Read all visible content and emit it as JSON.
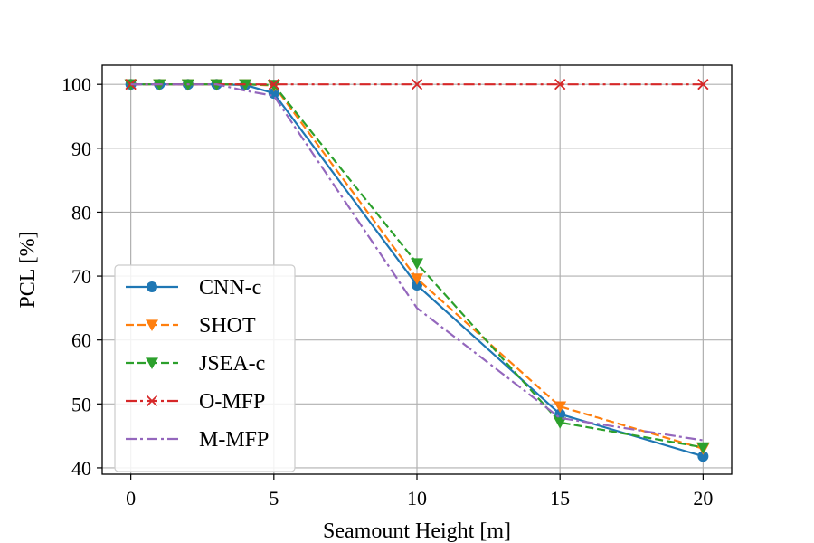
{
  "chart_data": {
    "type": "line",
    "title": "",
    "xlabel": "Seamount Height [m]",
    "ylabel": "PCL [%]",
    "xlim": [
      -1,
      21
    ],
    "ylim": [
      39,
      103
    ],
    "xticks": [
      0,
      5,
      10,
      15,
      20
    ],
    "yticks": [
      40,
      50,
      60,
      70,
      80,
      90,
      100
    ],
    "grid": true,
    "legend_position": "lower-left",
    "series": [
      {
        "name": "CNN-c",
        "color": "#1f77b4",
        "linestyle": "solid",
        "marker": "circle",
        "x": [
          0,
          1,
          2,
          3,
          4,
          5,
          10,
          15,
          20
        ],
        "y": [
          100,
          100,
          100,
          100,
          99.9,
          98.6,
          68.6,
          48.4,
          41.8
        ]
      },
      {
        "name": "SHOT",
        "color": "#ff7f0e",
        "linestyle": "dashed",
        "marker": "triangle-down",
        "x": [
          0,
          1,
          2,
          3,
          4,
          5,
          10,
          15,
          20
        ],
        "y": [
          100,
          100,
          100,
          100,
          100,
          99.8,
          69.6,
          49.6,
          43.0
        ]
      },
      {
        "name": "JSEA-c",
        "color": "#2ca02c",
        "linestyle": "dashed",
        "marker": "triangle-down",
        "x": [
          0,
          1,
          2,
          3,
          4,
          5,
          10,
          15,
          20
        ],
        "y": [
          100,
          100,
          100,
          100,
          100,
          99.9,
          72.0,
          47.1,
          43.2
        ]
      },
      {
        "name": "O-MFP",
        "color": "#d62728",
        "linestyle": "dashdot",
        "marker": "x",
        "x": [
          0,
          5,
          10,
          15,
          20
        ],
        "y": [
          100,
          100,
          100,
          100,
          100
        ]
      },
      {
        "name": "M-MFP",
        "color": "#9467bd",
        "linestyle": "dashdot",
        "marker": "none",
        "x": [
          0,
          1,
          2,
          3,
          4,
          5,
          10,
          15,
          20
        ],
        "y": [
          100,
          100,
          100,
          100,
          99.0,
          98.2,
          65.0,
          47.8,
          44.3
        ]
      }
    ]
  }
}
